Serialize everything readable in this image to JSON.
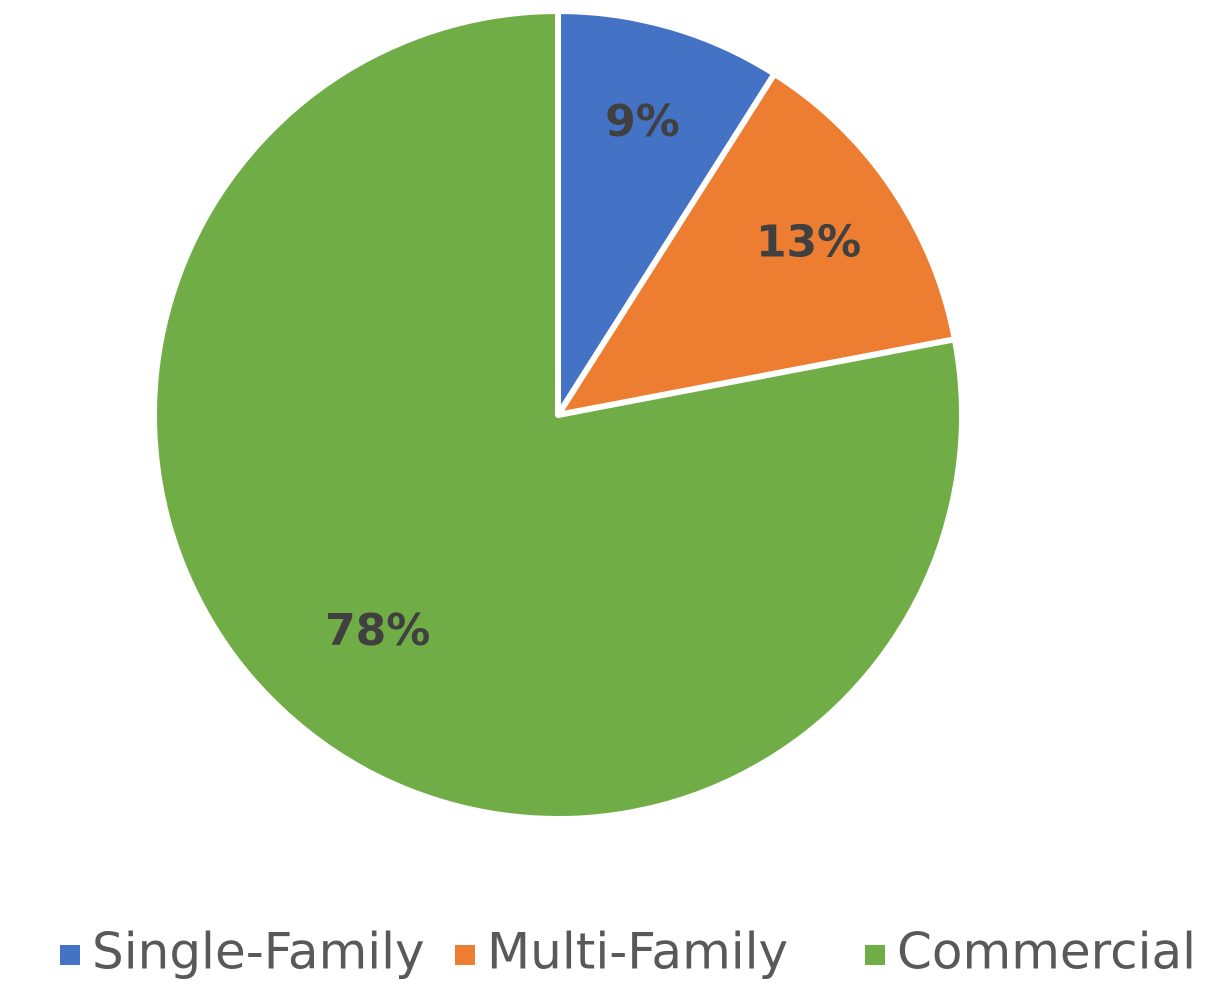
{
  "chart_data": {
    "type": "pie",
    "categories": [
      "Single-Family",
      "Multi-Family",
      "Commercial"
    ],
    "values": [
      9,
      13,
      78
    ],
    "value_labels": [
      "9%",
      "13%",
      "78%"
    ],
    "colors": [
      "#4472c4",
      "#ed7d31",
      "#70ad47"
    ],
    "legend": "bottom"
  }
}
